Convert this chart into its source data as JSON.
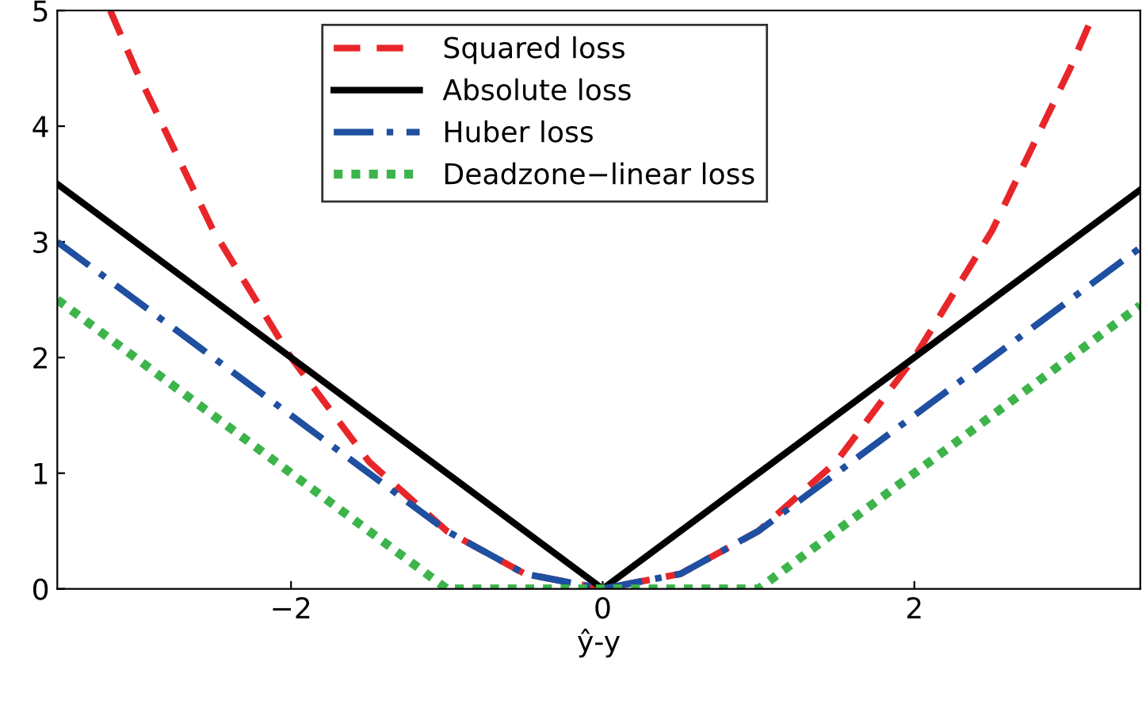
{
  "chart_data": {
    "type": "line",
    "xlabel": "ŷ-y",
    "xlim": [
      -3.5,
      3.45
    ],
    "ylim": [
      0,
      5
    ],
    "xticks": [
      {
        "value": -2,
        "label": "−2"
      },
      0,
      2
    ],
    "yticks": [
      0,
      1,
      2,
      3,
      4,
      5
    ],
    "grid": false,
    "legend": "top",
    "marker": "none",
    "series": [
      {
        "name": "Squared loss",
        "color": "#e8262a",
        "line_style": "dashed",
        "x": [
          -3.16,
          -3,
          -2.5,
          -2,
          -1.5,
          -1,
          -0.5,
          0,
          0.5,
          1,
          1.5,
          2,
          2.5,
          3,
          3.16
        ],
        "values": [
          5,
          4.5,
          3.1,
          2,
          1.1,
          0.5,
          0.13,
          0,
          0.13,
          0.5,
          1.1,
          2,
          3.1,
          4.5,
          5
        ]
      },
      {
        "name": "Absolute loss",
        "color": "#000000",
        "line_style": "solid",
        "x": [
          -3.5,
          0,
          3.45
        ],
        "values": [
          3.5,
          0,
          3.45
        ]
      },
      {
        "name": "Huber loss",
        "color": "#1f4fa0",
        "line_style": "dashdot",
        "x": [
          -3.5,
          -1,
          -0.5,
          0,
          0.5,
          1,
          3.45
        ],
        "values": [
          3,
          0.5,
          0.13,
          0,
          0.13,
          0.5,
          2.95
        ]
      },
      {
        "name": "Deadzone−linear loss",
        "color": "#3cb44b",
        "line_style": "dotted",
        "x": [
          -3.5,
          -1,
          1,
          3.45
        ],
        "values": [
          2.5,
          0,
          0,
          2.45
        ]
      }
    ]
  }
}
